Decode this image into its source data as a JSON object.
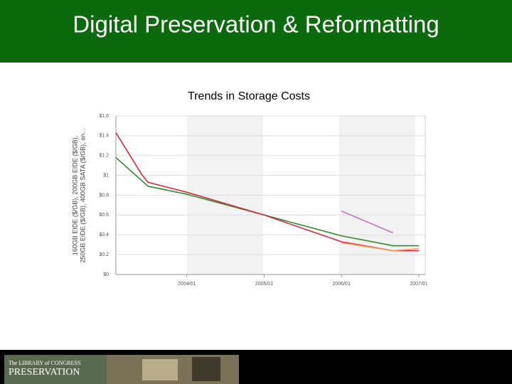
{
  "header": {
    "title": "Digital Preservation & Reformatting"
  },
  "chart_data": {
    "type": "line",
    "title": "Trends in Storage Costs",
    "y_label": [
      "160GB EIDE ($/GB), 200GB EIDE ($/GB),",
      "250GB EIDE ($/GB), 400GB SATA ($/GB), an..."
    ],
    "xlim": [
      "2003/02",
      "2007/02"
    ],
    "xticks": [
      "2004/01",
      "2005/01",
      "2006/01",
      "2007/01"
    ],
    "ylim": [
      0,
      1.6
    ],
    "yticks": [
      {
        "value": 0,
        "label": "$0"
      },
      {
        "value": 0.2,
        "label": "$0.2"
      },
      {
        "value": 0.4,
        "label": "$0.4"
      },
      {
        "value": 0.6,
        "label": "$0.6"
      },
      {
        "value": 0.8,
        "label": "$0.8"
      },
      {
        "value": 1,
        "label": "$1"
      },
      {
        "value": 1.2,
        "label": "$1.2"
      },
      {
        "value": 1.4,
        "label": "$1.4"
      },
      {
        "value": 1.6,
        "label": "$1.6"
      }
    ],
    "grid": true,
    "series": [
      {
        "color": "#2e8b2e",
        "x": [
          "2003/02",
          "2003/07",
          "2004/01",
          "2005/01",
          "2006/01",
          "2006/09",
          "2007/01"
        ],
        "values": [
          1.18,
          0.89,
          0.81,
          0.6,
          0.39,
          0.29,
          0.29
        ]
      },
      {
        "color": "#d42a3c",
        "x": [
          "2003/02",
          "2003/06",
          "2003/07",
          "2004/01",
          "2005/01",
          "2006/01",
          "2006/09",
          "2007/01"
        ],
        "values": [
          1.43,
          1.01,
          0.93,
          0.83,
          0.6,
          0.33,
          0.24,
          0.24
        ]
      },
      {
        "color": "#f0a050",
        "x": [
          "2006/01",
          "2006/09",
          "2007/01"
        ],
        "values": [
          0.32,
          0.24,
          0.26
        ]
      },
      {
        "color": "#c070c8",
        "x": [
          "2006/01",
          "2006/09"
        ],
        "values": [
          0.64,
          0.42
        ]
      }
    ]
  },
  "footer": {
    "line1": "The LIBRARY of CONGRESS",
    "line2": "PRESERVATION"
  }
}
